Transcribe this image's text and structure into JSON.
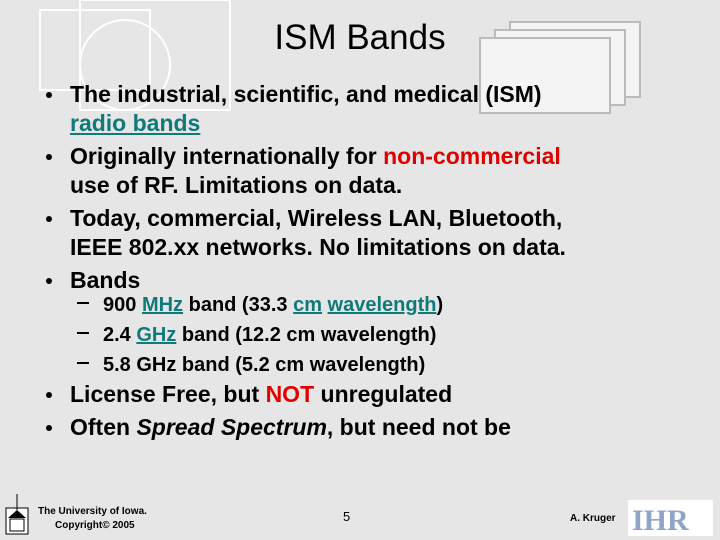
{
  "slide": {
    "title": "ISM Bands",
    "bullets": [
      {
        "runs": [
          "The industrial, scientific, and medical (ISM) ",
          "radio bands"
        ]
      },
      {
        "runs": [
          "Originally internationally for ",
          "non-commercial",
          "use of RF.  Limitations on data."
        ]
      },
      {
        "runs": [
          "Today, commercial, Wireless LAN, Bluetooth,",
          "IEEE 802.xx networks.  No limitations on data."
        ]
      },
      {
        "runs": [
          "Bands"
        ]
      }
    ],
    "sub_bullets": [
      {
        "runs": [
          "900 ",
          "MHz",
          " band (33.3 ",
          "cm",
          " ",
          "wavelength",
          ")"
        ]
      },
      {
        "runs": [
          "2.4 ",
          "GHz",
          " band (12.2 cm wavelength)"
        ]
      },
      {
        "runs": [
          "5.8 GHz band (5.2 cm wavelength)"
        ]
      }
    ],
    "more_bullets": [
      {
        "runs": [
          "License Free, but ",
          "NOT",
          " unregulated"
        ]
      },
      {
        "runs": [
          "Often ",
          "Spread Spectrum",
          ", but need not be"
        ]
      }
    ],
    "footer": {
      "university": "The University of Iowa.",
      "copyright": "Copyright© 2005",
      "page": "5",
      "author": "A. Kruger"
    }
  }
}
